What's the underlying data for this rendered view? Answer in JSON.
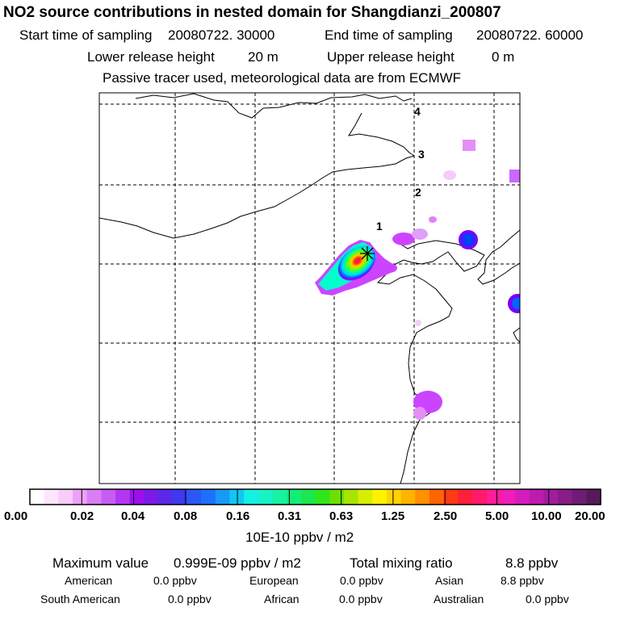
{
  "title": "NO2 source contributions in nested domain for Shangdianzi_200807",
  "sampling": {
    "start_label": "Start time of sampling",
    "start_value": "20080722. 30000",
    "end_label": "End time of sampling",
    "end_value": "20080722. 60000"
  },
  "release": {
    "lower_label": "Lower release height",
    "lower_value": "20 m",
    "upper_label": "Upper release height",
    "upper_value": "0 m"
  },
  "note": "Passive tracer used, meteorological data are from ECMWF",
  "map": {
    "grid_labels": [
      "1",
      "2",
      "3",
      "4"
    ],
    "receptor": "Shangdianzi",
    "plume_colors": [
      "#ff00cc",
      "#ff2200",
      "#ffcc00",
      "#66ff00",
      "#00ff99",
      "#00ccff",
      "#0066ff",
      "#7700ff",
      "#cc44ff",
      "#ffaaff"
    ]
  },
  "colorbar": {
    "colors": [
      "#ffffff",
      "#fde6fd",
      "#f9ccf9",
      "#eea0f7",
      "#d97ef4",
      "#c65df3",
      "#b337f2",
      "#9c0ff0",
      "#7a1ae8",
      "#5a28e6",
      "#3d39ee",
      "#2a57f5",
      "#1e6ffa",
      "#169af7",
      "#12c6f2",
      "#14f0e4",
      "#18f2c6",
      "#16f2a0",
      "#14ec78",
      "#19e84e",
      "#2fe61a",
      "#6be000",
      "#a7e400",
      "#d8ee00",
      "#fff200",
      "#ffd400",
      "#ffb400",
      "#ff9000",
      "#ff6400",
      "#ff3a14",
      "#ff1e3c",
      "#ff1a6a",
      "#ff1c96",
      "#f21cb8",
      "#d61cbe",
      "#bc1cae",
      "#a21c9c",
      "#881c88",
      "#701c74",
      "#561a5a"
    ],
    "labels": [
      "0.00",
      "0.02",
      "0.04",
      "0.08",
      "0.16",
      "0.31",
      "0.63",
      "1.25",
      "2.50",
      "5.00",
      "10.00",
      "20.00"
    ],
    "unit": "10E-10 ppbv / m2"
  },
  "summary": {
    "max_label": "Maximum value",
    "max_value": "0.999E-09 ppbv / m2",
    "total_label": "Total mixing ratio",
    "total_value": "8.8 ppbv",
    "sources": [
      {
        "name": "American",
        "value": "0.0 ppbv"
      },
      {
        "name": "European",
        "value": "0.0 ppbv"
      },
      {
        "name": "Asian",
        "value": "8.8 ppbv"
      },
      {
        "name": "South American",
        "value": "0.0 ppbv"
      },
      {
        "name": "African",
        "value": "0.0 ppbv"
      },
      {
        "name": "Australian",
        "value": "0.0 ppbv"
      }
    ]
  }
}
